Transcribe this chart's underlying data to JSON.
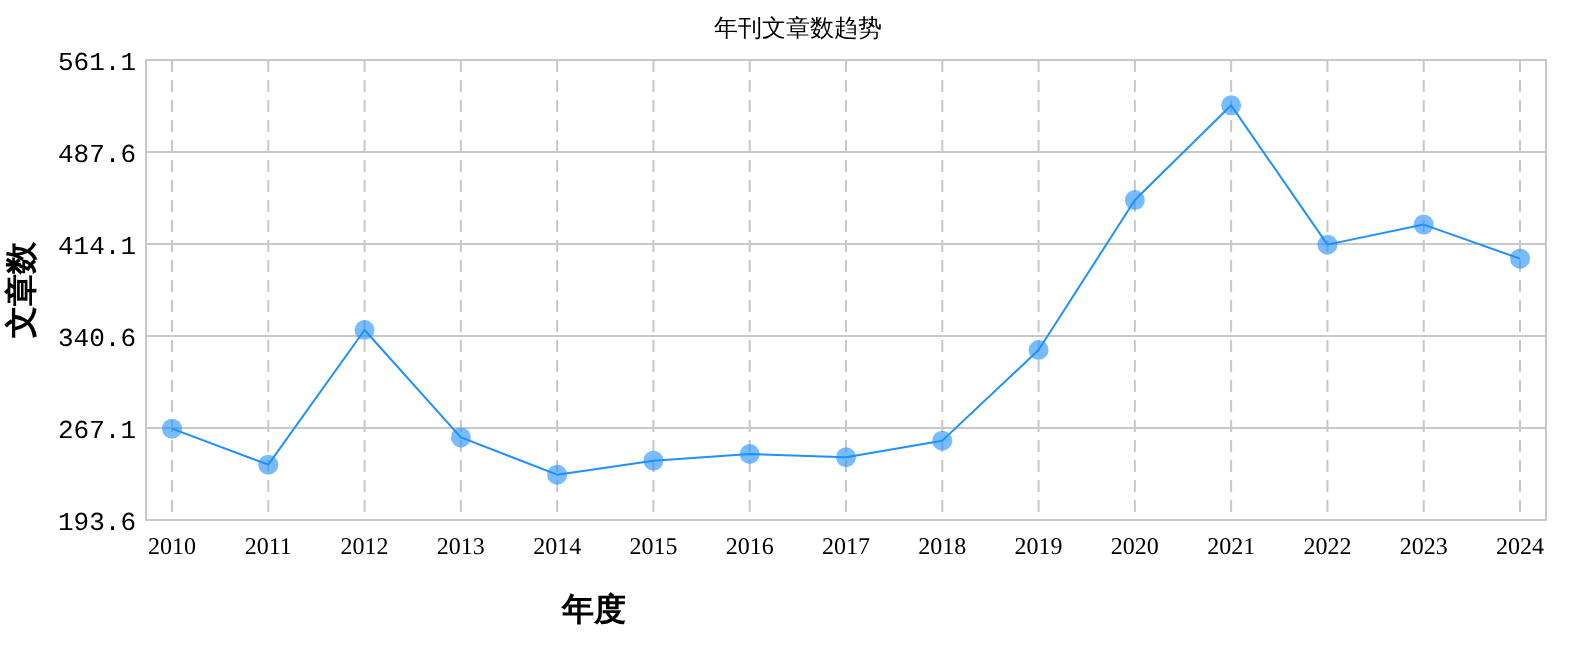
{
  "chart_data": {
    "type": "line",
    "title": "年刊文章数趋势",
    "xlabel": "年度",
    "ylabel": "文章数",
    "categories": [
      "2010",
      "2011",
      "2012",
      "2013",
      "2014",
      "2015",
      "2016",
      "2017",
      "2018",
      "2019",
      "2020",
      "2021",
      "2022",
      "2023",
      "2024"
    ],
    "series": [
      {
        "color": "#1e90ff",
        "values": [
          266.6,
          237.8,
          345.4,
          259.6,
          229.8,
          241,
          246.3,
          243.7,
          257,
          329.4,
          449.2,
          524.9,
          413.6,
          429.6,
          402.4
        ]
      }
    ],
    "ylim": [
      193.6,
      561.1
    ],
    "yticks": [
      193.6,
      267.1,
      340.6,
      414.1,
      487.6,
      561.1
    ],
    "grid": true,
    "marker": "circle",
    "line_style": "solid"
  }
}
